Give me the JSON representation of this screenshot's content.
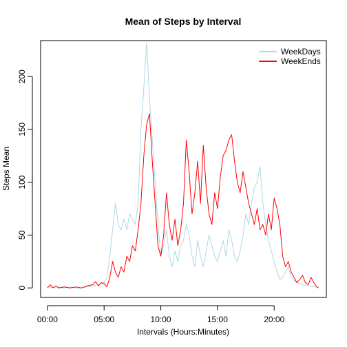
{
  "chart_data": {
    "type": "line",
    "title": "Mean of Steps by Interval",
    "xlabel": "Intervals (Hours:Minutes)",
    "ylabel": "Steps Mean",
    "x_unit": "hours",
    "xlim": [
      -0.6,
      24.6
    ],
    "ylim": [
      -9,
      234
    ],
    "x_ticks": [
      {
        "value": 0,
        "label": "00:00"
      },
      {
        "value": 5,
        "label": "05:00"
      },
      {
        "value": 10,
        "label": "10:00"
      },
      {
        "value": 15,
        "label": "15:00"
      },
      {
        "value": 20,
        "label": "20:00"
      }
    ],
    "y_ticks": [
      {
        "value": 0,
        "label": "0"
      },
      {
        "value": 50,
        "label": "50"
      },
      {
        "value": 100,
        "label": "100"
      },
      {
        "value": 150,
        "label": "150"
      },
      {
        "value": 200,
        "label": "200"
      }
    ],
    "grid": false,
    "legend_position": "top-right",
    "series": [
      {
        "name": "WeekDays",
        "color": "#add8e6",
        "points": [
          [
            0.0,
            2
          ],
          [
            0.25,
            0
          ],
          [
            0.5,
            1
          ],
          [
            0.75,
            0
          ],
          [
            1.0,
            1
          ],
          [
            1.5,
            0
          ],
          [
            2.0,
            1
          ],
          [
            2.5,
            0
          ],
          [
            3.0,
            0
          ],
          [
            3.5,
            1
          ],
          [
            4.0,
            2
          ],
          [
            4.5,
            3
          ],
          [
            5.0,
            5
          ],
          [
            5.25,
            10
          ],
          [
            5.5,
            30
          ],
          [
            5.75,
            55
          ],
          [
            6.0,
            80
          ],
          [
            6.25,
            60
          ],
          [
            6.5,
            55
          ],
          [
            6.75,
            65
          ],
          [
            7.0,
            55
          ],
          [
            7.25,
            70
          ],
          [
            7.5,
            65
          ],
          [
            7.75,
            60
          ],
          [
            8.0,
            80
          ],
          [
            8.25,
            150
          ],
          [
            8.5,
            190
          ],
          [
            8.75,
            232
          ],
          [
            9.0,
            180
          ],
          [
            9.25,
            140
          ],
          [
            9.5,
            100
          ],
          [
            9.75,
            60
          ],
          [
            10.0,
            30
          ],
          [
            10.25,
            40
          ],
          [
            10.5,
            55
          ],
          [
            10.75,
            30
          ],
          [
            11.0,
            20
          ],
          [
            11.25,
            35
          ],
          [
            11.5,
            25
          ],
          [
            11.75,
            40
          ],
          [
            12.0,
            45
          ],
          [
            12.25,
            60
          ],
          [
            12.5,
            50
          ],
          [
            12.75,
            30
          ],
          [
            13.0,
            20
          ],
          [
            13.25,
            45
          ],
          [
            13.5,
            30
          ],
          [
            13.75,
            20
          ],
          [
            14.0,
            35
          ],
          [
            14.25,
            50
          ],
          [
            14.5,
            40
          ],
          [
            14.75,
            30
          ],
          [
            15.0,
            25
          ],
          [
            15.25,
            35
          ],
          [
            15.5,
            45
          ],
          [
            15.75,
            30
          ],
          [
            16.0,
            55
          ],
          [
            16.25,
            45
          ],
          [
            16.5,
            30
          ],
          [
            16.75,
            25
          ],
          [
            17.0,
            35
          ],
          [
            17.25,
            50
          ],
          [
            17.5,
            70
          ],
          [
            17.75,
            60
          ],
          [
            18.0,
            80
          ],
          [
            18.25,
            95
          ],
          [
            18.5,
            100
          ],
          [
            18.75,
            115
          ],
          [
            19.0,
            80
          ],
          [
            19.25,
            60
          ],
          [
            19.5,
            45
          ],
          [
            19.75,
            35
          ],
          [
            20.0,
            25
          ],
          [
            20.25,
            15
          ],
          [
            20.5,
            8
          ],
          [
            20.75,
            10
          ],
          [
            21.0,
            15
          ],
          [
            21.25,
            20
          ],
          [
            21.5,
            10
          ],
          [
            22.0,
            5
          ],
          [
            22.5,
            3
          ],
          [
            23.0,
            2
          ],
          [
            23.5,
            1
          ],
          [
            23.92,
            1
          ]
        ]
      },
      {
        "name": "WeekEnds",
        "color": "#ff0000",
        "points": [
          [
            0.0,
            0
          ],
          [
            0.25,
            3
          ],
          [
            0.5,
            0
          ],
          [
            0.75,
            2
          ],
          [
            1.0,
            0
          ],
          [
            1.5,
            1
          ],
          [
            2.0,
            0
          ],
          [
            2.5,
            1
          ],
          [
            3.0,
            0
          ],
          [
            3.5,
            2
          ],
          [
            4.0,
            3
          ],
          [
            4.25,
            6
          ],
          [
            4.5,
            2
          ],
          [
            4.75,
            5
          ],
          [
            5.0,
            4
          ],
          [
            5.25,
            1
          ],
          [
            5.5,
            10
          ],
          [
            5.75,
            25
          ],
          [
            6.0,
            15
          ],
          [
            6.25,
            10
          ],
          [
            6.5,
            20
          ],
          [
            6.75,
            15
          ],
          [
            7.0,
            30
          ],
          [
            7.25,
            25
          ],
          [
            7.5,
            40
          ],
          [
            7.75,
            35
          ],
          [
            8.0,
            55
          ],
          [
            8.25,
            80
          ],
          [
            8.5,
            125
          ],
          [
            8.75,
            155
          ],
          [
            9.0,
            165
          ],
          [
            9.25,
            120
          ],
          [
            9.5,
            80
          ],
          [
            9.75,
            40
          ],
          [
            10.0,
            30
          ],
          [
            10.25,
            50
          ],
          [
            10.5,
            90
          ],
          [
            10.75,
            60
          ],
          [
            11.0,
            45
          ],
          [
            11.25,
            65
          ],
          [
            11.5,
            40
          ],
          [
            11.75,
            55
          ],
          [
            12.0,
            80
          ],
          [
            12.25,
            140
          ],
          [
            12.5,
            110
          ],
          [
            12.75,
            70
          ],
          [
            13.0,
            90
          ],
          [
            13.25,
            120
          ],
          [
            13.5,
            80
          ],
          [
            13.75,
            135
          ],
          [
            14.0,
            95
          ],
          [
            14.25,
            70
          ],
          [
            14.5,
            60
          ],
          [
            14.75,
            90
          ],
          [
            15.0,
            75
          ],
          [
            15.25,
            105
          ],
          [
            15.5,
            125
          ],
          [
            15.75,
            130
          ],
          [
            16.0,
            140
          ],
          [
            16.25,
            145
          ],
          [
            16.5,
            120
          ],
          [
            16.75,
            100
          ],
          [
            17.0,
            90
          ],
          [
            17.25,
            110
          ],
          [
            17.5,
            95
          ],
          [
            17.75,
            80
          ],
          [
            18.0,
            70
          ],
          [
            18.25,
            60
          ],
          [
            18.5,
            75
          ],
          [
            18.75,
            55
          ],
          [
            19.0,
            60
          ],
          [
            19.25,
            50
          ],
          [
            19.5,
            70
          ],
          [
            19.75,
            55
          ],
          [
            20.0,
            85
          ],
          [
            20.25,
            75
          ],
          [
            20.5,
            60
          ],
          [
            20.75,
            30
          ],
          [
            21.0,
            20
          ],
          [
            21.25,
            25
          ],
          [
            21.5,
            15
          ],
          [
            21.75,
            10
          ],
          [
            22.0,
            5
          ],
          [
            22.25,
            8
          ],
          [
            22.5,
            12
          ],
          [
            22.75,
            5
          ],
          [
            23.0,
            3
          ],
          [
            23.25,
            10
          ],
          [
            23.5,
            5
          ],
          [
            23.75,
            1
          ],
          [
            23.92,
            0
          ]
        ]
      }
    ]
  }
}
